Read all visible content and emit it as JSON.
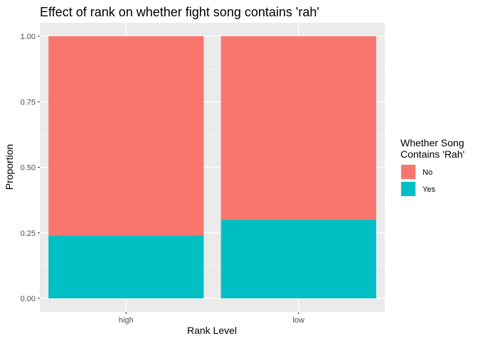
{
  "chart_data": {
    "type": "bar",
    "stacked": true,
    "title": "Effect of rank on whether fight song contains 'rah'",
    "xlabel": "Rank Level",
    "ylabel": "Proportion",
    "categories": [
      "high",
      "low"
    ],
    "series": [
      {
        "name": "No",
        "values": [
          0.76,
          0.7
        ],
        "color": "#F8766D"
      },
      {
        "name": "Yes",
        "values": [
          0.24,
          0.3
        ],
        "color": "#00BFC4"
      }
    ],
    "ylim": [
      0,
      1.05
    ],
    "yticks": [
      0,
      0.25,
      0.5,
      0.75,
      1.0
    ],
    "ytick_labels": [
      "0.00",
      "0.25",
      "0.50",
      "0.75",
      "1.00"
    ],
    "grid": true,
    "panel_background": "#EBEBEB",
    "legend": {
      "title_line1": "Whether Song",
      "title_line2": "Contains 'Rah'",
      "placement": "right"
    }
  }
}
